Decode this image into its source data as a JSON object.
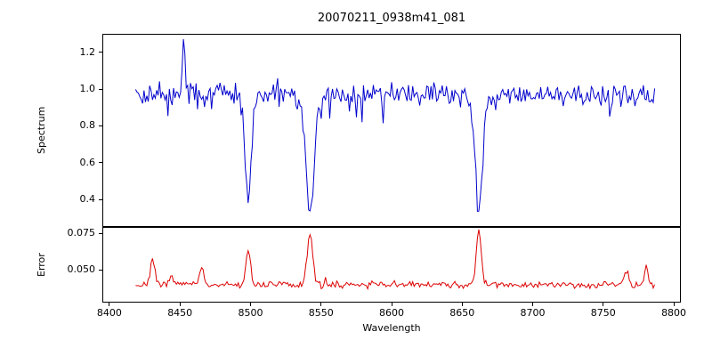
{
  "figure": {
    "background": "#ffffff",
    "spine_color": "#000000"
  },
  "chart_data": {
    "type": "line",
    "title": "20070211_0938m41_081",
    "xlabel": "Wavelength",
    "xlim": [
      8395,
      8805
    ],
    "x_ticks": [
      8400,
      8450,
      8500,
      8550,
      8600,
      8650,
      8700,
      8750,
      8800
    ],
    "x_tick_labels": [
      "8400",
      "8450",
      "8500",
      "8550",
      "8600",
      "8650",
      "8700",
      "8750",
      "8800"
    ],
    "x_start": 8418,
    "x_end": 8787,
    "x_step": 1.0,
    "grid": false,
    "legend": false,
    "panels": [
      {
        "name": "spectrum",
        "ylabel": "Spectrum",
        "ylim": [
          0.25,
          1.3
        ],
        "y_ticks": [
          0.4,
          0.6,
          0.8,
          1.0,
          1.2
        ],
        "y_tick_labels": [
          "0.4",
          "0.6",
          "0.8",
          "1.0",
          "1.2"
        ],
        "color": "#0000cd",
        "series": {
          "description": "normalized stellar spectrum, noisy continuum with Ca II triplet absorption lines",
          "continuum": 0.97,
          "noise_sigma": 0.03,
          "dip_probability": 0.06,
          "dip_max": 0.14,
          "seed": 42,
          "absorption_lines": [
            {
              "center": 8498,
              "min_value": 0.4,
              "sigma": 2.2
            },
            {
              "center": 8542,
              "min_value": 0.32,
              "sigma": 3.0
            },
            {
              "center": 8662,
              "min_value": 0.33,
              "sigma": 2.6
            }
          ],
          "emission_spikes": [
            {
              "center": 8452,
              "peak_value": 1.23,
              "sigma": 1.1
            }
          ]
        }
      },
      {
        "name": "error",
        "ylabel": "Error",
        "ylim": [
          0.0275,
          0.0795
        ],
        "y_ticks": [
          0.05,
          0.075
        ],
        "y_tick_labels": [
          "0.050",
          "0.075"
        ],
        "color": "#dc0000",
        "series": {
          "description": "error spectrum, flat baseline with peaks at absorption-line wavelengths",
          "baseline": 0.0395,
          "noise_sigma": 0.0012,
          "spike_probability": 0.05,
          "spike_max": 0.004,
          "seed": 7,
          "peaks": [
            {
              "center": 8430,
              "peak_value": 0.056,
              "sigma": 1.6
            },
            {
              "center": 8444,
              "peak_value": 0.047,
              "sigma": 1.2
            },
            {
              "center": 8465,
              "peak_value": 0.051,
              "sigma": 1.5
            },
            {
              "center": 8498,
              "peak_value": 0.062,
              "sigma": 1.6
            },
            {
              "center": 8542,
              "peak_value": 0.075,
              "sigma": 2.0
            },
            {
              "center": 8662,
              "peak_value": 0.078,
              "sigma": 1.8
            },
            {
              "center": 8767,
              "peak_value": 0.051,
              "sigma": 1.4
            },
            {
              "center": 8781,
              "peak_value": 0.053,
              "sigma": 1.2
            }
          ]
        }
      }
    ]
  }
}
